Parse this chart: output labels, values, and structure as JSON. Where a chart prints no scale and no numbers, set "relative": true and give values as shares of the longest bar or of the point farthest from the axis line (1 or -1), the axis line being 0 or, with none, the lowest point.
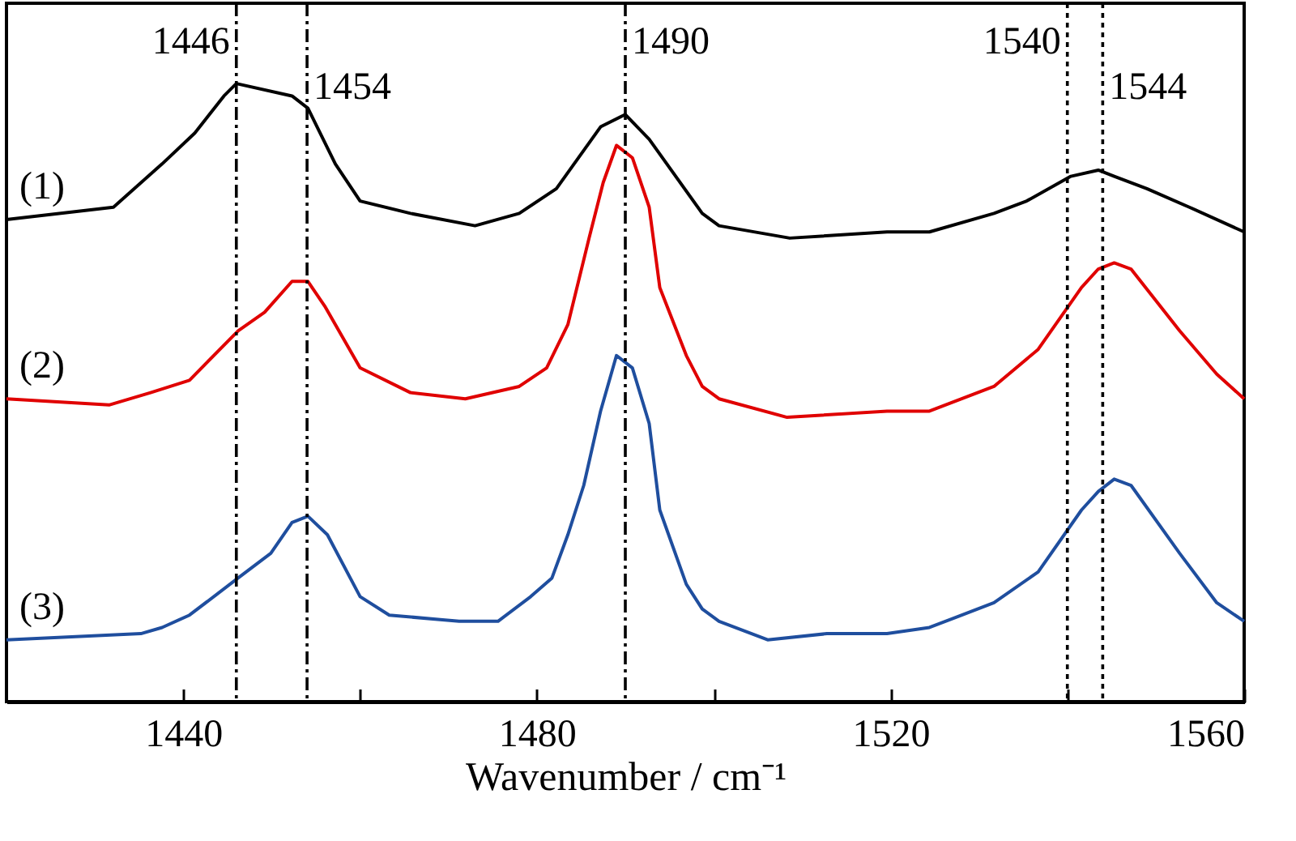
{
  "chart_data": {
    "type": "line",
    "xlabel": "Wavenumber / cm⁻¹",
    "relative": true,
    "grid": false,
    "line_style": "solid",
    "marker": "none",
    "xlim": [
      1420,
      1560
    ],
    "xticks": [
      1440,
      {
        "value": 1460,
        "label": null
      },
      1480,
      {
        "value": 1500,
        "label": null
      },
      1520,
      {
        "value": 1540,
        "label": null
      },
      1560
    ],
    "tick_labels": "x",
    "series": [
      {
        "name": "(1)",
        "color": "#000000",
        "x": [
          1420,
          1432.1,
          1437.6,
          1441.3,
          1444.6,
          1446,
          1452.3,
          1454.1,
          1457.2,
          1460,
          1465.7,
          1473,
          1478,
          1482.2,
          1487.2,
          1490,
          1492.7,
          1498.7,
          1500.6,
          1508.6,
          1519.6,
          1524.4,
          1531.7,
          1535.4,
          1540.4,
          1543.5,
          1545.3,
          1549,
          1553.8,
          1560
        ],
        "values": [
          0.78,
          0.8,
          0.87,
          0.92,
          0.98,
          1,
          0.98,
          0.96,
          0.87,
          0.81,
          0.79,
          0.77,
          0.79,
          0.83,
          0.93,
          0.95,
          0.91,
          0.79,
          0.77,
          0.75,
          0.76,
          0.76,
          0.79,
          0.81,
          0.85,
          0.86,
          0.85,
          0.83,
          0.8,
          0.76
        ]
      },
      {
        "name": "(2)",
        "color": "#e00000",
        "x": [
          1420,
          1431.6,
          1436.3,
          1440.7,
          1446.2,
          1449.2,
          1452.3,
          1454.1,
          1456,
          1460,
          1465.7,
          1471.9,
          1478,
          1481.1,
          1483.5,
          1485.9,
          1487.5,
          1489,
          1490.8,
          1492.7,
          1493.9,
          1496.9,
          1498.7,
          1500.6,
          1508.3,
          1519.6,
          1524.4,
          1531.7,
          1536.7,
          1541.6,
          1543.5,
          1545.3,
          1547.2,
          1552.7,
          1556.9,
          1560
        ],
        "values": [
          0.49,
          0.48,
          0.5,
          0.52,
          0.6,
          0.63,
          0.68,
          0.68,
          0.64,
          0.54,
          0.5,
          0.49,
          0.51,
          0.54,
          0.61,
          0.75,
          0.84,
          0.9,
          0.88,
          0.8,
          0.67,
          0.56,
          0.51,
          0.49,
          0.46,
          0.47,
          0.47,
          0.51,
          0.57,
          0.67,
          0.7,
          0.71,
          0.7,
          0.6,
          0.53,
          0.49
        ]
      },
      {
        "name": "(3)",
        "color": "#1f4e9e",
        "x": [
          1420,
          1435.2,
          1437.6,
          1440.7,
          1446.2,
          1449.9,
          1452.3,
          1454.1,
          1456.3,
          1460,
          1463.3,
          1471.2,
          1475.6,
          1479.3,
          1481.7,
          1483.5,
          1485.3,
          1487.2,
          1489,
          1490.8,
          1492.7,
          1493.9,
          1496.9,
          1498.7,
          1500.6,
          1506.1,
          1512.8,
          1519.6,
          1524.4,
          1531.7,
          1536.7,
          1541.6,
          1543.5,
          1545.3,
          1547.2,
          1552.7,
          1556.9,
          1560
        ],
        "values": [
          0.1,
          0.11,
          0.12,
          0.14,
          0.2,
          0.24,
          0.29,
          0.3,
          0.27,
          0.17,
          0.14,
          0.13,
          0.13,
          0.17,
          0.2,
          0.27,
          0.35,
          0.47,
          0.56,
          0.54,
          0.45,
          0.31,
          0.19,
          0.15,
          0.13,
          0.1,
          0.11,
          0.11,
          0.12,
          0.16,
          0.21,
          0.31,
          0.34,
          0.36,
          0.35,
          0.24,
          0.16,
          0.13
        ]
      }
    ],
    "ref_lines": [
      {
        "axis": "x",
        "value": 1446,
        "label": "1446",
        "line_style": "dashed"
      },
      {
        "axis": "x",
        "value": 1454,
        "label": "1454",
        "line_style": "dashed"
      },
      {
        "axis": "x",
        "value": 1490,
        "label": "1490",
        "line_style": "dashed"
      },
      {
        "axis": "x",
        "value": 1540,
        "label": "1540",
        "line_style": "dotted"
      },
      {
        "axis": "x",
        "value": 1544,
        "label": "1544",
        "line_style": "dotted"
      }
    ]
  }
}
